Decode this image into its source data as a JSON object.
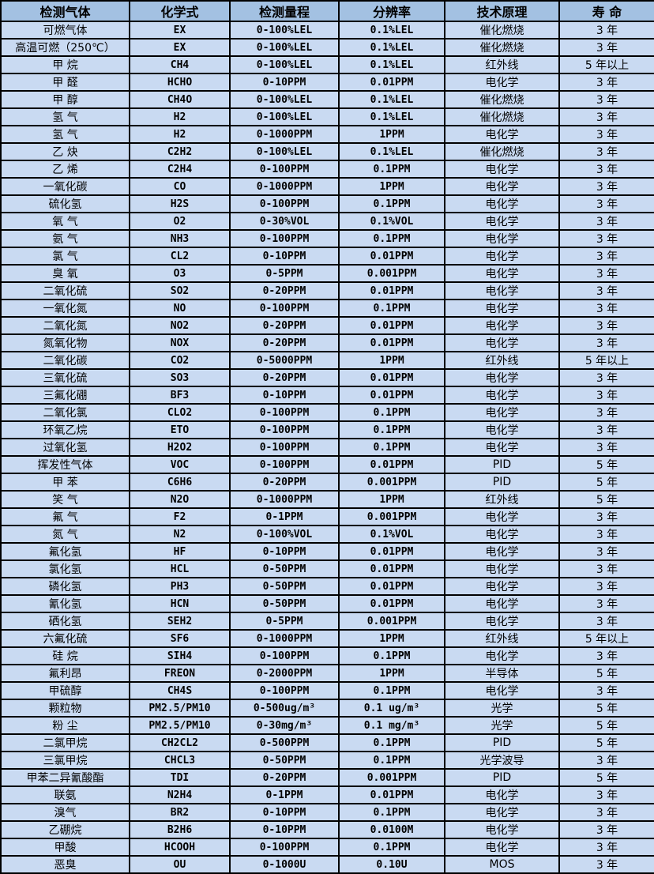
{
  "table": {
    "colors": {
      "header_bg": "#a3c1e2",
      "row_bg": "#c9daf2",
      "border": "#000000"
    },
    "headers": [
      "检测气体",
      "化学式",
      "检测量程",
      "分辨率",
      "技术原理",
      "寿 命"
    ],
    "rows": [
      [
        "可燃气体",
        "EX",
        "0-100%LEL",
        "0.1%LEL",
        "催化燃烧",
        "3 年"
      ],
      [
        "高温可燃（250℃）",
        "EX",
        "0-100%LEL",
        "0.1%LEL",
        "催化燃烧",
        "3 年"
      ],
      [
        "甲 烷",
        "CH4",
        "0-100%LEL",
        "0.1%LEL",
        "红外线",
        "5 年以上"
      ],
      [
        "甲 醛",
        "HCHO",
        "0-10PPM",
        "0.01PPM",
        "电化学",
        "3 年"
      ],
      [
        "甲 醇",
        "CH4O",
        "0-100%LEL",
        "0.1%LEL",
        "催化燃烧",
        "3 年"
      ],
      [
        "氢 气",
        "H2",
        "0-100%LEL",
        "0.1%LEL",
        "催化燃烧",
        "3 年"
      ],
      [
        "氢 气",
        "H2",
        "0-1000PPM",
        "1PPM",
        "电化学",
        "3 年"
      ],
      [
        "乙 炔",
        "C2H2",
        "0-100%LEL",
        "0.1%LEL",
        "催化燃烧",
        "3 年"
      ],
      [
        "乙 烯",
        "C2H4",
        "0-100PPM",
        "0.1PPM",
        "电化学",
        "3 年"
      ],
      [
        "一氧化碳",
        "CO",
        "0-1000PPM",
        "1PPM",
        "电化学",
        "3 年"
      ],
      [
        "硫化氢",
        "H2S",
        "0-100PPM",
        "0.1PPM",
        "电化学",
        "3 年"
      ],
      [
        "氧 气",
        "O2",
        "0-30%VOL",
        "0.1%VOL",
        "电化学",
        "3 年"
      ],
      [
        "氨 气",
        "NH3",
        "0-100PPM",
        "0.1PPM",
        "电化学",
        "3 年"
      ],
      [
        "氯 气",
        "CL2",
        "0-10PPM",
        "0.01PPM",
        "电化学",
        "3 年"
      ],
      [
        "臭 氧",
        "O3",
        "0-5PPM",
        "0.001PPM",
        "电化学",
        "3 年"
      ],
      [
        "二氧化硫",
        "SO2",
        "0-20PPM",
        "0.01PPM",
        "电化学",
        "3 年"
      ],
      [
        "一氧化氮",
        "NO",
        "0-100PPM",
        "0.1PPM",
        "电化学",
        "3 年"
      ],
      [
        "二氧化氮",
        "NO2",
        "0-20PPM",
        "0.01PPM",
        "电化学",
        "3 年"
      ],
      [
        "氮氧化物",
        "NOX",
        "0-20PPM",
        "0.01PPM",
        "电化学",
        "3 年"
      ],
      [
        "二氧化碳",
        "CO2",
        "0-5000PPM",
        "1PPM",
        "红外线",
        "5 年以上"
      ],
      [
        "三氧化硫",
        "SO3",
        "0-20PPM",
        "0.01PPM",
        "电化学",
        "3 年"
      ],
      [
        "三氟化硼",
        "BF3",
        "0-10PPM",
        "0.01PPM",
        "电化学",
        "3 年"
      ],
      [
        "二氧化氯",
        "CLO2",
        "0-100PPM",
        "0.1PPM",
        "电化学",
        "3 年"
      ],
      [
        "环氧乙烷",
        "ETO",
        "0-100PPM",
        "0.1PPM",
        "电化学",
        "3 年"
      ],
      [
        "过氧化氢",
        "H2O2",
        "0-100PPM",
        "0.1PPM",
        "电化学",
        "3 年"
      ],
      [
        "挥发性气体",
        "VOC",
        "0-100PPM",
        "0.01PPM",
        "PID",
        "5 年"
      ],
      [
        "甲 苯",
        "C6H6",
        "0-20PPM",
        "0.001PPM",
        "PID",
        "5 年"
      ],
      [
        "笑 气",
        "N2O",
        "0-1000PPM",
        "1PPM",
        "红外线",
        "5 年"
      ],
      [
        "氟 气",
        "F2",
        "0-1PPM",
        "0.001PPM",
        "电化学",
        "3 年"
      ],
      [
        "氮 气",
        "N2",
        "0-100%VOL",
        "0.1%VOL",
        "电化学",
        "3 年"
      ],
      [
        "氟化氢",
        "HF",
        "0-10PPM",
        "0.01PPM",
        "电化学",
        "3 年"
      ],
      [
        "氯化氢",
        "HCL",
        "0-50PPM",
        "0.01PPM",
        "电化学",
        "3 年"
      ],
      [
        "磷化氢",
        "PH3",
        "0-50PPM",
        "0.01PPM",
        "电化学",
        "3 年"
      ],
      [
        "氰化氢",
        "HCN",
        "0-50PPM",
        "0.01PPM",
        "电化学",
        "3 年"
      ],
      [
        "硒化氢",
        "SEH2",
        "0-5PPM",
        "0.001PPM",
        "电化学",
        "3 年"
      ],
      [
        "六氟化硫",
        "SF6",
        "0-1000PPM",
        "1PPM",
        "红外线",
        "5 年以上"
      ],
      [
        "硅 烷",
        "SIH4",
        "0-100PPM",
        "0.1PPM",
        "电化学",
        "3 年"
      ],
      [
        "氟利昂",
        "FREON",
        "0-2000PPM",
        "1PPM",
        "半导体",
        "5 年"
      ],
      [
        "甲硫醇",
        "CH4S",
        "0-100PPM",
        "0.1PPM",
        "电化学",
        "3 年"
      ],
      [
        "颗粒物",
        "PM2.5/PM10",
        "0-500ug/m³",
        "0.1 ug/m³",
        "光学",
        "5 年"
      ],
      [
        "粉 尘",
        "PM2.5/PM10",
        "0-30mg/m³",
        "0.1 mg/m³",
        "光学",
        "5 年"
      ],
      [
        "二氯甲烷",
        "CH2CL2",
        "0-500PPM",
        "0.1PPM",
        "PID",
        "5 年"
      ],
      [
        "三氯甲烷",
        "CHCL3",
        "0-50PPM",
        "0.1PPM",
        "光学波导",
        "3 年"
      ],
      [
        "甲苯二异氰酸酯",
        "TDI",
        "0-20PPM",
        "0.001PPM",
        "PID",
        "5 年"
      ],
      [
        "联氨",
        "N2H4",
        "0-1PPM",
        "0.01PPM",
        "电化学",
        "3 年"
      ],
      [
        "溴气",
        "BR2",
        "0-10PPM",
        "0.1PPM",
        "电化学",
        "3 年"
      ],
      [
        "乙硼烷",
        "B2H6",
        "0-10PPM",
        "0.0100M",
        "电化学",
        "3 年"
      ],
      [
        "甲酸",
        "HCOOH",
        "0-100PPM",
        "0.1PPM",
        "电化学",
        "3 年"
      ],
      [
        "恶臭",
        "OU",
        "0-1000U",
        "0.10U",
        "MOS",
        "3 年"
      ]
    ]
  }
}
